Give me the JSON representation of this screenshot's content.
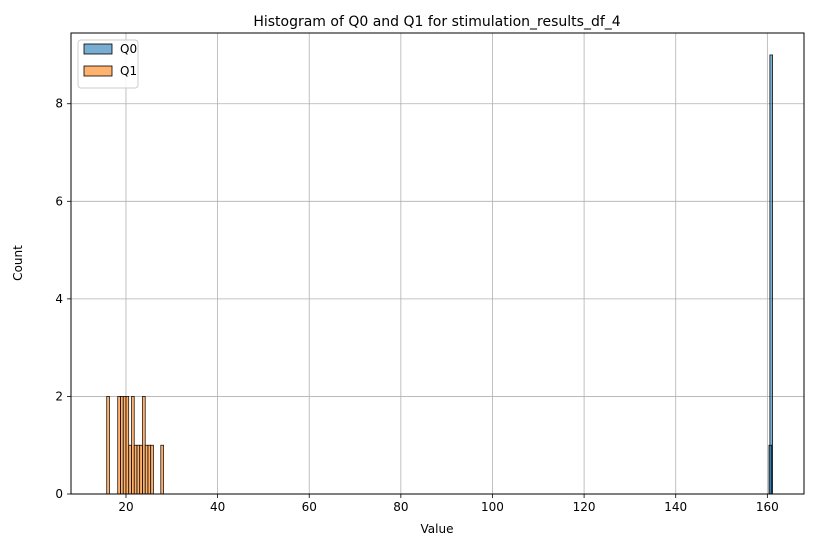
{
  "chart_data": {
    "type": "bar",
    "subtype": "histogram",
    "title": "Histogram of Q0 and Q1 for stimulation_results_df_4",
    "xlabel": "Value",
    "ylabel": "Count",
    "xlim": [
      8,
      168
    ],
    "ylim": [
      0,
      9.45
    ],
    "xticks": [
      20,
      40,
      60,
      80,
      100,
      120,
      140,
      160
    ],
    "yticks": [
      0,
      2,
      4,
      6,
      8
    ],
    "grid": true,
    "legend_position": "upper-left",
    "bin_width": 0.6,
    "series": [
      {
        "name": "Q0",
        "color": "#1f77b4",
        "bins": [
          {
            "x": 160.85,
            "count": 9
          },
          {
            "x": 160.65,
            "count": 1
          }
        ]
      },
      {
        "name": "Q1",
        "color": "#ff7f0e",
        "bins": [
          {
            "x": 16.1,
            "count": 2
          },
          {
            "x": 18.5,
            "count": 2
          },
          {
            "x": 19.1,
            "count": 2
          },
          {
            "x": 19.7,
            "count": 2
          },
          {
            "x": 20.3,
            "count": 2
          },
          {
            "x": 20.9,
            "count": 1
          },
          {
            "x": 21.5,
            "count": 2
          },
          {
            "x": 22.1,
            "count": 1
          },
          {
            "x": 22.7,
            "count": 1
          },
          {
            "x": 23.3,
            "count": 1
          },
          {
            "x": 23.9,
            "count": 2
          },
          {
            "x": 24.5,
            "count": 1
          },
          {
            "x": 25.1,
            "count": 1
          },
          {
            "x": 25.7,
            "count": 1
          },
          {
            "x": 27.9,
            "count": 1
          }
        ]
      }
    ]
  }
}
